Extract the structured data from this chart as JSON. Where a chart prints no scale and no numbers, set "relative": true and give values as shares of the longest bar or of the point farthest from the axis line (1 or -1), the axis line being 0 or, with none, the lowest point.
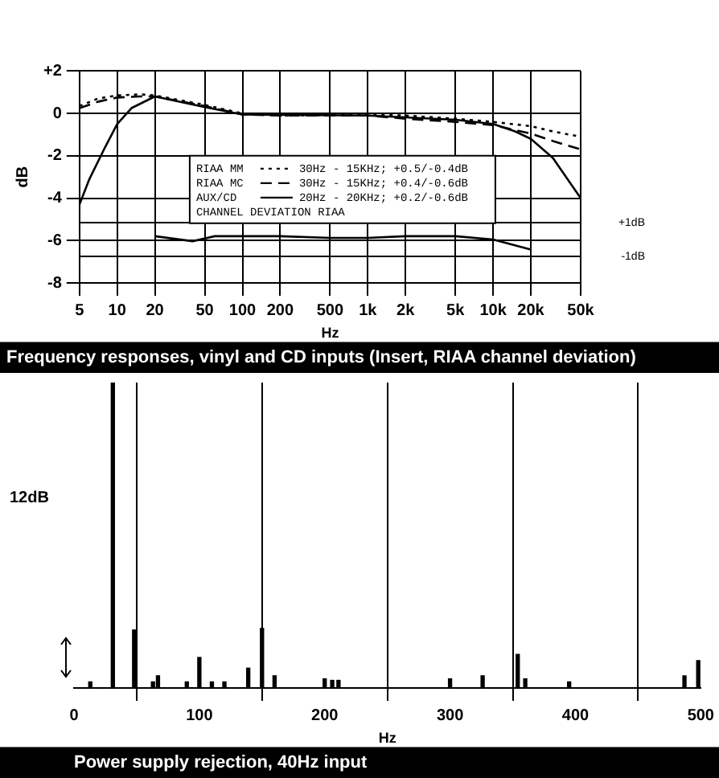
{
  "chart_data": [
    {
      "type": "line",
      "title": "Frequency responses, vinyl and CD inputs (Insert, RIAA channel deviation)",
      "xlabel": "Hz",
      "ylabel": "dB",
      "log": "x",
      "xlim": [
        5,
        50000
      ],
      "xticks": [
        5,
        10,
        20,
        50,
        100,
        200,
        500,
        {
          "value": 1000,
          "label": "1k"
        },
        {
          "value": 2000,
          "label": "2k"
        },
        {
          "value": 5000,
          "label": "5k"
        },
        {
          "value": 10000,
          "label": "10k"
        },
        {
          "value": 20000,
          "label": "20k"
        },
        {
          "value": 50000,
          "label": "50k"
        }
      ],
      "ylim": [
        -8,
        2
      ],
      "yticks": [
        {
          "value": 2,
          "label": "+2"
        },
        0,
        -2,
        -4,
        -6,
        -8
      ],
      "y2lim": [
        -2.6,
        10.1
      ],
      "y2ticks": [
        {
          "value": 1,
          "label": "+1dB"
        },
        {
          "value": -1,
          "label": "-1dB"
        }
      ],
      "grid": true,
      "legend": "center",
      "annotations": [
        "30Hz - 15KHz; +0.5/-0.4dB",
        "30Hz - 15KHz; +0.4/-0.6dB",
        "20Hz - 20KHz; +0.2/-0.6dB"
      ],
      "series": [
        {
          "name": "RIAA MM",
          "color": "#000000",
          "line_style": "dotted",
          "x": [
            5,
            7,
            10,
            15,
            20,
            50,
            100,
            200,
            1000,
            2000,
            5000,
            10000,
            20000,
            30000,
            50000
          ],
          "values": [
            0.35,
            0.7,
            0.85,
            0.9,
            0.85,
            0.4,
            0,
            -0.1,
            -0.05,
            -0.1,
            -0.25,
            -0.4,
            -0.6,
            -0.85,
            -1.1
          ]
        },
        {
          "name": "RIAA MC",
          "color": "#000000",
          "line_style": "dashed",
          "x": [
            5,
            7,
            10,
            15,
            20,
            50,
            100,
            200,
            1000,
            2000,
            5000,
            10000,
            20000,
            30000,
            50000
          ],
          "values": [
            0.25,
            0.55,
            0.75,
            0.8,
            0.8,
            0.35,
            -0.05,
            -0.1,
            -0.1,
            -0.25,
            -0.4,
            -0.55,
            -0.95,
            -1.3,
            -1.7
          ]
        },
        {
          "name": "AUX/CD",
          "color": "#000000",
          "line_style": "solid",
          "x": [
            5,
            6,
            8,
            10,
            13,
            20,
            50,
            100,
            1000,
            5000,
            10000,
            15000,
            20000,
            30000,
            50000
          ],
          "values": [
            -4.3,
            -3.1,
            -1.6,
            -0.5,
            0.25,
            0.8,
            0.3,
            -0.05,
            -0.1,
            -0.3,
            -0.5,
            -0.85,
            -1.2,
            -2.1,
            -4
          ]
        },
        {
          "name": "CHANNEL DEVIATION RIAA",
          "color": "#000000",
          "line_style": "solid",
          "axis": "y2",
          "x": [
            20,
            40,
            60,
            200,
            500,
            1000,
            2000,
            5000,
            10000,
            20000
          ],
          "values": [
            0.2,
            -0.1,
            0.2,
            0.2,
            0.1,
            0.1,
            0.2,
            0.2,
            0,
            -0.6
          ]
        }
      ]
    },
    {
      "type": "bar",
      "title": "Power supply rejection, 40Hz input",
      "xlabel": "Hz",
      "relative": true,
      "color": "#000000",
      "xlim": [
        0,
        500
      ],
      "xticks": [
        0,
        100,
        200,
        300,
        400,
        500
      ],
      "grid": "x",
      "annotations": [
        "12dB"
      ],
      "x": [
        13,
        31,
        48,
        63,
        67,
        90,
        100,
        110,
        120,
        139,
        150,
        160,
        200,
        206,
        211,
        300,
        326,
        354,
        360,
        395,
        487,
        498
      ],
      "values": [
        0.02,
        1,
        0.19,
        0.02,
        0.04,
        0.02,
        0.1,
        0.02,
        0.02,
        0.065,
        0.195,
        0.04,
        0.03,
        0.025,
        0.025,
        0.03,
        0.04,
        0.11,
        0.03,
        0.02,
        0.04,
        0.09
      ]
    }
  ]
}
